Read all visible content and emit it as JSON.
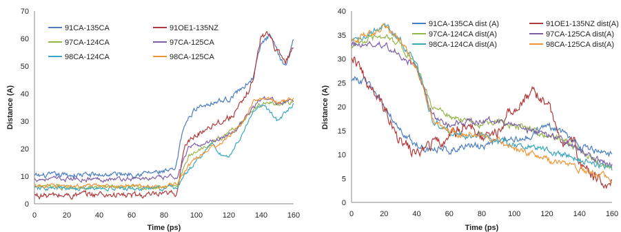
{
  "colors": {
    "blue": "#4a7dbf",
    "red": "#b0393a",
    "green": "#93b548",
    "purple": "#7b5ea6",
    "teal": "#3aa6bd",
    "orange": "#ef9434"
  },
  "chart_data": [
    {
      "type": "line",
      "xlabel": "Time (ps)",
      "ylabel": "Distance (A)",
      "xlim": [
        0,
        160
      ],
      "ylim": [
        0,
        70
      ],
      "xticks": [
        0,
        20,
        40,
        60,
        80,
        100,
        120,
        140,
        160
      ],
      "yticks": [
        0,
        10,
        20,
        30,
        40,
        50,
        60,
        70
      ],
      "grid": false,
      "legend_position": "top-left",
      "series": [
        {
          "name": "91CA-135CA",
          "color": "blue",
          "noise": 1.0,
          "points": [
            [
              0,
              10
            ],
            [
              20,
              10.5
            ],
            [
              40,
              10.5
            ],
            [
              60,
              11
            ],
            [
              80,
              11.5
            ],
            [
              87,
              12
            ],
            [
              92,
              28
            ],
            [
              100,
              35
            ],
            [
              110,
              37
            ],
            [
              120,
              38
            ],
            [
              130,
              43
            ],
            [
              135,
              46
            ],
            [
              140,
              58
            ],
            [
              145,
              61
            ],
            [
              150,
              55
            ],
            [
              155,
              50
            ],
            [
              160,
              60
            ]
          ]
        },
        {
          "name": "91OE1-135NZ",
          "color": "red",
          "noise": 1.2,
          "points": [
            [
              0,
              3
            ],
            [
              20,
              3
            ],
            [
              40,
              3.5
            ],
            [
              60,
              3
            ],
            [
              80,
              3
            ],
            [
              88,
              4
            ],
            [
              92,
              20
            ],
            [
              100,
              25
            ],
            [
              110,
              29
            ],
            [
              120,
              31
            ],
            [
              128,
              36
            ],
            [
              135,
              45
            ],
            [
              140,
              61
            ],
            [
              145,
              62
            ],
            [
              150,
              55
            ],
            [
              155,
              52
            ],
            [
              160,
              57
            ]
          ]
        },
        {
          "name": "97CA-124CA",
          "color": "green",
          "noise": 0.8,
          "points": [
            [
              0,
              6
            ],
            [
              20,
              6
            ],
            [
              40,
              6
            ],
            [
              60,
              6
            ],
            [
              80,
              6
            ],
            [
              88,
              7
            ],
            [
              95,
              17
            ],
            [
              105,
              21
            ],
            [
              115,
              24
            ],
            [
              125,
              28
            ],
            [
              130,
              31
            ],
            [
              135,
              34
            ],
            [
              140,
              36
            ],
            [
              145,
              37
            ],
            [
              150,
              36
            ],
            [
              160,
              37
            ]
          ]
        },
        {
          "name": "97CA-125CA",
          "color": "purple",
          "noise": 0.8,
          "points": [
            [
              0,
              9
            ],
            [
              20,
              9
            ],
            [
              40,
              9
            ],
            [
              60,
              9
            ],
            [
              80,
              9.5
            ],
            [
              88,
              10
            ],
            [
              95,
              20
            ],
            [
              105,
              22
            ],
            [
              115,
              24
            ],
            [
              125,
              27
            ],
            [
              130,
              31
            ],
            [
              135,
              35
            ],
            [
              140,
              38
            ],
            [
              145,
              38
            ],
            [
              150,
              37
            ],
            [
              160,
              37
            ]
          ]
        },
        {
          "name": "98CA-124CA",
          "color": "teal",
          "noise": 0.8,
          "points": [
            [
              0,
              5.5
            ],
            [
              20,
              5.5
            ],
            [
              40,
              5.5
            ],
            [
              60,
              5.5
            ],
            [
              80,
              5.5
            ],
            [
              88,
              6
            ],
            [
              95,
              12
            ],
            [
              105,
              19
            ],
            [
              110,
              22
            ],
            [
              115,
              18
            ],
            [
              120,
              17
            ],
            [
              125,
              22
            ],
            [
              130,
              27
            ],
            [
              135,
              33
            ],
            [
              140,
              36
            ],
            [
              145,
              34
            ],
            [
              150,
              30
            ],
            [
              160,
              36
            ]
          ]
        },
        {
          "name": "98CA-125CA",
          "color": "orange",
          "noise": 0.7,
          "points": [
            [
              0,
              6.5
            ],
            [
              20,
              6.5
            ],
            [
              40,
              6.5
            ],
            [
              60,
              6.5
            ],
            [
              80,
              6.5
            ],
            [
              88,
              7
            ],
            [
              95,
              14
            ],
            [
              105,
              19
            ],
            [
              115,
              22
            ],
            [
              125,
              27
            ],
            [
              130,
              31
            ],
            [
              135,
              37
            ],
            [
              140,
              38
            ],
            [
              145,
              38
            ],
            [
              150,
              37
            ],
            [
              160,
              38
            ]
          ]
        }
      ]
    },
    {
      "type": "line",
      "xlabel": "Time (ps)",
      "ylabel": "Distance (A)",
      "xlim": [
        0,
        160
      ],
      "ylim": [
        0,
        40
      ],
      "xticks": [
        0,
        20,
        40,
        60,
        80,
        100,
        120,
        140,
        160
      ],
      "yticks": [
        0,
        5,
        10,
        15,
        20,
        25,
        30,
        35,
        40
      ],
      "grid": false,
      "legend_position": "top-right",
      "series": [
        {
          "name": "91CA-135CA dist (A)",
          "color": "blue",
          "noise": 0.8,
          "points": [
            [
              0,
              26
            ],
            [
              10,
              25
            ],
            [
              20,
              20
            ],
            [
              30,
              15
            ],
            [
              40,
              12
            ],
            [
              50,
              11
            ],
            [
              60,
              11
            ],
            [
              70,
              12
            ],
            [
              80,
              11.5
            ],
            [
              90,
              13
            ],
            [
              100,
              13
            ],
            [
              110,
              14
            ],
            [
              120,
              16
            ],
            [
              130,
              15
            ],
            [
              140,
              12
            ],
            [
              150,
              10.5
            ],
            [
              160,
              10
            ]
          ]
        },
        {
          "name": "91OE1-135NZ dist(A)",
          "color": "red",
          "noise": 1.3,
          "points": [
            [
              0,
              31
            ],
            [
              5,
              29
            ],
            [
              10,
              24
            ],
            [
              20,
              20
            ],
            [
              30,
              13
            ],
            [
              40,
              10
            ],
            [
              50,
              12
            ],
            [
              60,
              14
            ],
            [
              70,
              16
            ],
            [
              80,
              14
            ],
            [
              90,
              15
            ],
            [
              100,
              20
            ],
            [
              110,
              23
            ],
            [
              120,
              21
            ],
            [
              130,
              12
            ],
            [
              135,
              15
            ],
            [
              140,
              8
            ],
            [
              150,
              5
            ],
            [
              160,
              4
            ]
          ]
        },
        {
          "name": "97CA-124CA dist(A)",
          "color": "green",
          "noise": 0.7,
          "points": [
            [
              0,
              33
            ],
            [
              10,
              34
            ],
            [
              20,
              35
            ],
            [
              30,
              33
            ],
            [
              40,
              28
            ],
            [
              50,
              20
            ],
            [
              60,
              18
            ],
            [
              70,
              17
            ],
            [
              80,
              16
            ],
            [
              90,
              17
            ],
            [
              100,
              16
            ],
            [
              110,
              15.5
            ],
            [
              120,
              14
            ],
            [
              130,
              13
            ],
            [
              140,
              11
            ],
            [
              150,
              9
            ],
            [
              160,
              7
            ]
          ]
        },
        {
          "name": "97CA-125CA dist(A)",
          "color": "purple",
          "noise": 0.7,
          "points": [
            [
              0,
              33
            ],
            [
              10,
              33
            ],
            [
              20,
              33
            ],
            [
              30,
              31
            ],
            [
              40,
              28
            ],
            [
              50,
              18
            ],
            [
              60,
              16
            ],
            [
              70,
              17
            ],
            [
              80,
              17
            ],
            [
              90,
              17
            ],
            [
              100,
              16
            ],
            [
              110,
              15
            ],
            [
              120,
              14
            ],
            [
              130,
              13
            ],
            [
              140,
              11
            ],
            [
              150,
              9
            ],
            [
              160,
              8
            ]
          ]
        },
        {
          "name": "98CA-124CA dist(A)",
          "color": "teal",
          "noise": 0.7,
          "points": [
            [
              0,
              34
            ],
            [
              10,
              35
            ],
            [
              20,
              37
            ],
            [
              30,
              34
            ],
            [
              40,
              29
            ],
            [
              50,
              17
            ],
            [
              60,
              15
            ],
            [
              70,
              14
            ],
            [
              80,
              14
            ],
            [
              90,
              13
            ],
            [
              100,
              12
            ],
            [
              110,
              12
            ],
            [
              120,
              11
            ],
            [
              130,
              10
            ],
            [
              140,
              9
            ],
            [
              150,
              8
            ],
            [
              160,
              7
            ]
          ]
        },
        {
          "name": "98CA-125CA dist(A)",
          "color": "orange",
          "noise": 0.7,
          "points": [
            [
              0,
              34
            ],
            [
              10,
              35
            ],
            [
              20,
              37
            ],
            [
              30,
              34
            ],
            [
              40,
              28
            ],
            [
              50,
              17
            ],
            [
              60,
              15
            ],
            [
              70,
              14
            ],
            [
              80,
              14
            ],
            [
              90,
              13
            ],
            [
              100,
              11
            ],
            [
              110,
              10
            ],
            [
              120,
              9
            ],
            [
              130,
              8
            ],
            [
              140,
              7
            ],
            [
              150,
              6
            ],
            [
              160,
              5
            ]
          ]
        }
      ]
    }
  ]
}
